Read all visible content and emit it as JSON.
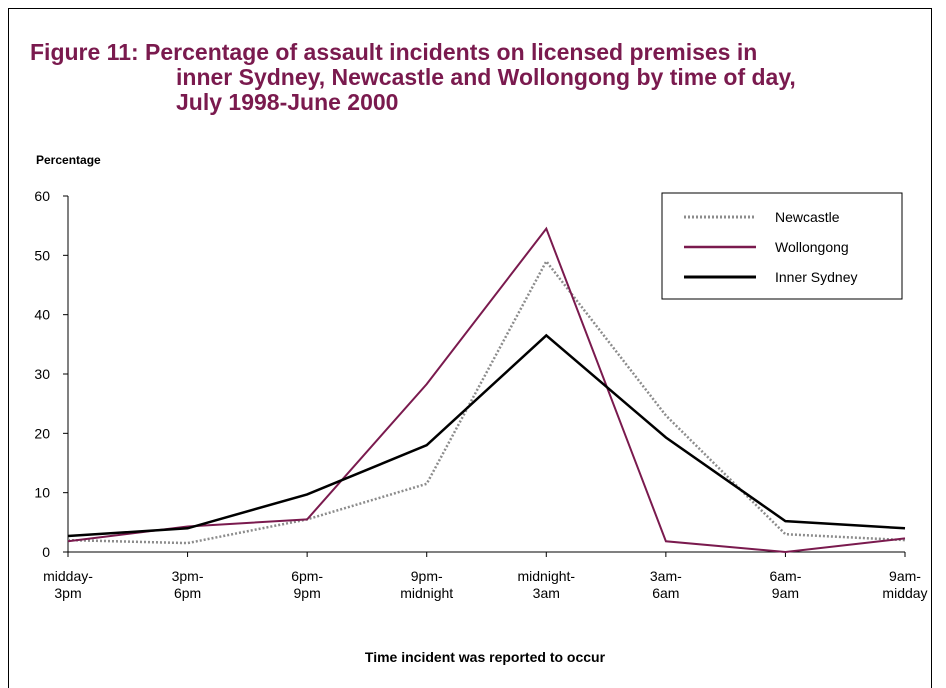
{
  "chart_data": {
    "type": "line",
    "title": "Figure 11: Percentage of assault incidents on licensed premises in inner Sydney, Newcastle and Wollongong by time of day, July 1998-June 2000",
    "title_lines": [
      "Figure 11: Percentage of assault incidents on licensed premises in",
      "inner Sydney, Newcastle and Wollongong by time of day,",
      "July 1998-June 2000"
    ],
    "xlabel": "Time incident was reported to occur",
    "ylabel": "Percentage",
    "ylim": [
      0,
      60
    ],
    "yticks": [
      0,
      10,
      20,
      30,
      40,
      50,
      60
    ],
    "categories": [
      [
        "midday-",
        "3pm"
      ],
      [
        "3pm-",
        "6pm"
      ],
      [
        "6pm-",
        "9pm"
      ],
      [
        "9pm-",
        "midnight"
      ],
      [
        "midnight-",
        "3am"
      ],
      [
        "3am-",
        "6am"
      ],
      [
        "6am-",
        "9am"
      ],
      [
        "9am-",
        "midday"
      ]
    ],
    "legend_position": "top-right",
    "grid": false,
    "series": [
      {
        "name": "Newcastle",
        "color": "#8c8c8c",
        "style": "dotted",
        "values": [
          2,
          1.5,
          5.5,
          11.5,
          49,
          23,
          3,
          2
        ]
      },
      {
        "name": "Wollongong",
        "color": "#7a1a4e",
        "style": "solid",
        "values": [
          1.8,
          4.3,
          5.5,
          28.3,
          54.5,
          1.8,
          0,
          2.3
        ]
      },
      {
        "name": "Inner Sydney",
        "color": "#000000",
        "style": "solid-thick",
        "values": [
          2.7,
          4,
          9.7,
          18,
          36.5,
          19.3,
          5.2,
          4
        ]
      }
    ]
  }
}
